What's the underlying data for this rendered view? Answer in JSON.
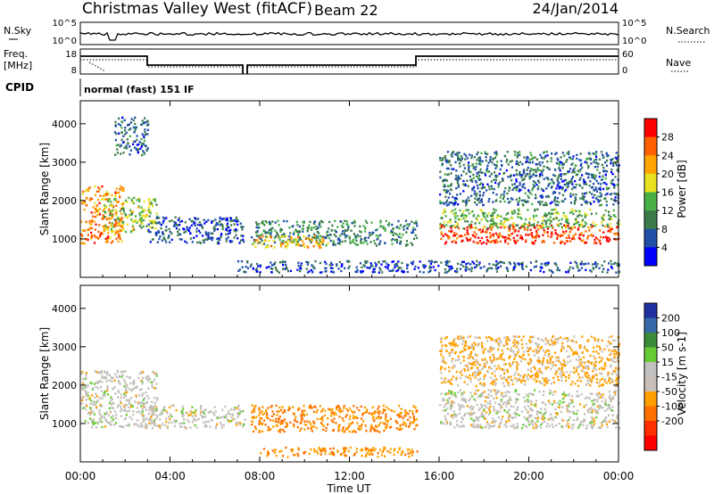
{
  "header": {
    "title": "Christmas Valley West (fitACF)",
    "beam": "Beam 22",
    "date": "24/Jan/2014"
  },
  "status_panels": {
    "nsky_label": "N.Sky",
    "nsky_ticks": [
      "10^5",
      "10^0"
    ],
    "nsearch_label": "N.Search",
    "nsearch_ticks": [
      "10^5",
      "10^0"
    ],
    "freq_label_1": "Freq.",
    "freq_label_2": "[MHz]",
    "freq_ticks": [
      "18",
      "8"
    ],
    "nave_label": "Nave",
    "nave_ticks": [
      "60",
      "0"
    ],
    "cpid_label": "CPID",
    "cpid_value": "normal (fast) 151 IF"
  },
  "colors": {
    "power": [
      "#0000ff",
      "#1f4fa8",
      "#3b7a4a",
      "#49b048",
      "#e8e020",
      "#ffa500",
      "#ff6000",
      "#ff0000"
    ],
    "velocity": [
      "#2030a0",
      "#3468a8",
      "#3a8a3a",
      "#66cc33",
      "#c0c0c0",
      "#c8c0b8",
      "#ffa000",
      "#ff7000",
      "#ff3000",
      "#ff0000"
    ]
  },
  "chart_data": [
    {
      "type": "heatmap",
      "name": "power",
      "ylabel": "Slant Range [km]",
      "ylim": [
        0,
        4600
      ],
      "yticks": [
        "1000",
        "2000",
        "3000",
        "4000"
      ],
      "colorbar_label": "Power [dB]",
      "colorbar_ticks": [
        "4",
        "8",
        "12",
        "16",
        "20",
        "24",
        "28"
      ],
      "features": [
        {
          "t_start": 0.0,
          "t_end": 1.9,
          "range_min": 900,
          "range_max": 2400,
          "power_db": 24
        },
        {
          "t_start": 1.0,
          "t_end": 3.4,
          "range_min": 1200,
          "range_max": 2100,
          "power_db": 16
        },
        {
          "t_start": 1.5,
          "t_end": 3.0,
          "range_min": 3200,
          "range_max": 4200,
          "power_db": 8
        },
        {
          "t_start": 3.0,
          "t_end": 7.3,
          "range_min": 900,
          "range_max": 1600,
          "power_db": 6
        },
        {
          "t_start": 7.6,
          "t_end": 15.0,
          "range_min": 850,
          "range_max": 1500,
          "power_db": 10
        },
        {
          "t_start": 7.6,
          "t_end": 11.0,
          "range_min": 800,
          "range_max": 1100,
          "power_db": 20
        },
        {
          "t_start": 7.0,
          "t_end": 24.0,
          "range_min": 150,
          "range_max": 450,
          "power_db": 6
        },
        {
          "t_start": 16.0,
          "t_end": 24.0,
          "range_min": 900,
          "range_max": 1400,
          "power_db": 28
        },
        {
          "t_start": 16.0,
          "t_end": 24.0,
          "range_min": 1300,
          "range_max": 1800,
          "power_db": 14
        },
        {
          "t_start": 16.0,
          "t_end": 24.0,
          "range_min": 1900,
          "range_max": 3300,
          "power_db": 8
        }
      ]
    },
    {
      "type": "heatmap",
      "name": "velocity",
      "ylabel": "Slant Range [km]",
      "ylim": [
        0,
        4600
      ],
      "yticks": [
        "1000",
        "2000",
        "3000",
        "4000"
      ],
      "colorbar_label": "Velocity [m s-1]",
      "colorbar_ticks": [
        "200",
        "100",
        "50",
        "15",
        "-15",
        "-50",
        "-100",
        "-200"
      ],
      "features": [
        {
          "t_start": 0.0,
          "t_end": 3.4,
          "range_min": 900,
          "range_max": 2400,
          "velocity": 0
        },
        {
          "t_start": 3.0,
          "t_end": 7.3,
          "range_min": 900,
          "range_max": 1500,
          "velocity": 0
        },
        {
          "t_start": 7.6,
          "t_end": 15.0,
          "range_min": 800,
          "range_max": 1500,
          "velocity": -50
        },
        {
          "t_start": 8.0,
          "t_end": 15.0,
          "range_min": 150,
          "range_max": 400,
          "velocity": -40
        },
        {
          "t_start": 16.0,
          "t_end": 24.0,
          "range_min": 900,
          "range_max": 1900,
          "velocity": 0
        },
        {
          "t_start": 16.0,
          "t_end": 24.0,
          "range_min": 2000,
          "range_max": 3300,
          "velocity": -20
        }
      ]
    }
  ],
  "x_axis": {
    "label": "Time UT",
    "ticks": [
      "00:00",
      "04:00",
      "08:00",
      "12:00",
      "16:00",
      "20:00",
      "00:00"
    ]
  }
}
